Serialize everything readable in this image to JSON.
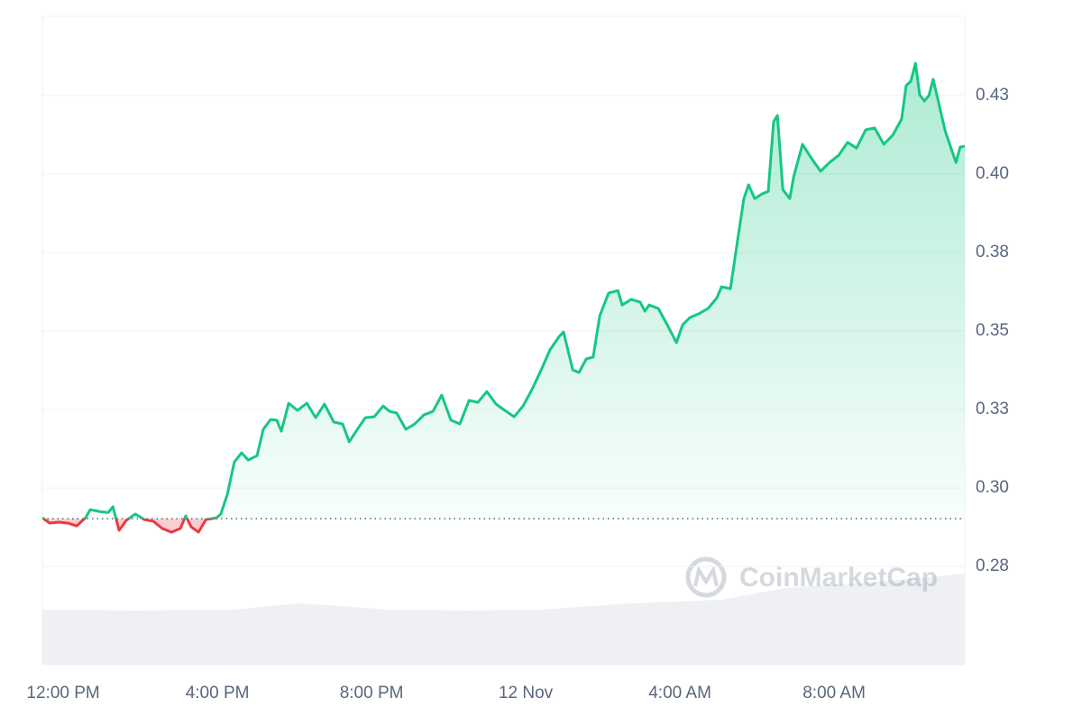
{
  "chart_data": {
    "type": "line",
    "watermark": "CoinMarketCap",
    "color": "#16c784",
    "down_color": "#ea3943",
    "baseline": 0.2902,
    "grid": true,
    "xlim": [
      -0.54,
      23.39
    ],
    "xticks": [
      {
        "value": 0,
        "label": "12:00 PM"
      },
      {
        "value": 4,
        "label": "4:00 PM"
      },
      {
        "value": 8,
        "label": "8:00 PM"
      },
      {
        "value": 12,
        "label": "12 Nov"
      },
      {
        "value": 16,
        "label": "4:00 AM"
      },
      {
        "value": 20,
        "label": "8:00 AM"
      }
    ],
    "ylim": [
      0.2437,
      0.4503
    ],
    "yticks": [
      {
        "value": 0.275,
        "label": "0.28"
      },
      {
        "value": 0.3,
        "label": "0.30"
      },
      {
        "value": 0.325,
        "label": "0.33"
      },
      {
        "value": 0.35,
        "label": "0.35"
      },
      {
        "value": 0.375,
        "label": "0.38"
      },
      {
        "value": 0.4,
        "label": "0.40"
      },
      {
        "value": 0.425,
        "label": "0.43"
      }
    ],
    "x": [
      -0.54,
      -0.35,
      -0.12,
      0.12,
      0.35,
      0.58,
      0.7,
      0.94,
      1.17,
      1.29,
      1.45,
      1.64,
      1.87,
      2.11,
      2.34,
      2.57,
      2.81,
      3.04,
      3.18,
      3.32,
      3.51,
      3.7,
      3.98,
      4.09,
      4.26,
      4.44,
      4.63,
      4.8,
      5.03,
      5.19,
      5.38,
      5.54,
      5.66,
      5.85,
      6.08,
      6.32,
      6.55,
      6.78,
      7.02,
      7.25,
      7.42,
      7.6,
      7.84,
      8.07,
      8.3,
      8.47,
      8.65,
      8.89,
      9.12,
      9.36,
      9.59,
      9.82,
      10.06,
      10.29,
      10.53,
      10.76,
      10.99,
      11.23,
      11.46,
      11.7,
      11.93,
      12.16,
      12.4,
      12.63,
      12.87,
      12.98,
      13.22,
      13.38,
      13.57,
      13.75,
      13.92,
      14.15,
      14.39,
      14.5,
      14.74,
      14.97,
      15.09,
      15.2,
      15.44,
      15.67,
      15.91,
      16.07,
      16.26,
      16.49,
      16.73,
      16.96,
      17.08,
      17.31,
      17.5,
      17.66,
      17.78,
      17.94,
      18.13,
      18.29,
      18.43,
      18.53,
      18.67,
      18.85,
      18.95,
      19.18,
      19.42,
      19.65,
      19.88,
      20.12,
      20.35,
      20.58,
      20.82,
      21.05,
      21.29,
      21.52,
      21.75,
      21.87,
      21.99,
      22.11,
      22.22,
      22.34,
      22.46,
      22.57,
      22.69,
      22.88,
      23.16,
      23.27,
      23.39
    ],
    "values": [
      0.2905,
      0.2888,
      0.2891,
      0.2888,
      0.2879,
      0.2905,
      0.2931,
      0.2925,
      0.2922,
      0.294,
      0.2865,
      0.2897,
      0.2917,
      0.2899,
      0.2894,
      0.2871,
      0.2859,
      0.2871,
      0.2911,
      0.2876,
      0.2859,
      0.2899,
      0.2905,
      0.2917,
      0.298,
      0.3083,
      0.3112,
      0.3089,
      0.3103,
      0.3187,
      0.3218,
      0.3216,
      0.3181,
      0.327,
      0.3247,
      0.327,
      0.3224,
      0.3267,
      0.321,
      0.3204,
      0.3147,
      0.3181,
      0.3224,
      0.3227,
      0.3261,
      0.3244,
      0.3239,
      0.3187,
      0.3204,
      0.3233,
      0.3244,
      0.3296,
      0.3216,
      0.3204,
      0.3279,
      0.3273,
      0.3307,
      0.3267,
      0.3247,
      0.3227,
      0.3261,
      0.3313,
      0.3376,
      0.344,
      0.3483,
      0.3497,
      0.3376,
      0.3368,
      0.3411,
      0.3417,
      0.3549,
      0.3621,
      0.3629,
      0.3583,
      0.3601,
      0.3592,
      0.3563,
      0.3583,
      0.3572,
      0.352,
      0.3463,
      0.352,
      0.3543,
      0.3555,
      0.3572,
      0.3606,
      0.3641,
      0.3635,
      0.3793,
      0.3922,
      0.3966,
      0.3922,
      0.3937,
      0.3945,
      0.4167,
      0.4187,
      0.3951,
      0.3922,
      0.3991,
      0.4095,
      0.4049,
      0.4009,
      0.4037,
      0.406,
      0.4101,
      0.4083,
      0.4141,
      0.4147,
      0.4095,
      0.4124,
      0.4175,
      0.4282,
      0.4296,
      0.4353,
      0.4253,
      0.4233,
      0.425,
      0.4302,
      0.4239,
      0.4138,
      0.4037,
      0.4086,
      0.4089
    ]
  }
}
